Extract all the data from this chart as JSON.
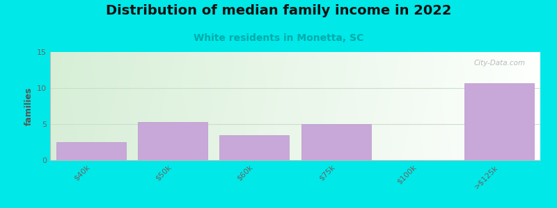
{
  "categories": [
    "$40k",
    "$50k",
    "$60k",
    "$75k",
    "$100k",
    ">$125k"
  ],
  "values": [
    2.5,
    5.3,
    3.5,
    5.0,
    0,
    10.7
  ],
  "bar_color": "#c8a8d8",
  "bar_edge_color": "#b898c8",
  "title": "Distribution of median family income in 2022",
  "subtitle": "White residents in Monetta, SC",
  "ylabel": "families",
  "ylim": [
    0,
    15
  ],
  "yticks": [
    0,
    5,
    10,
    15
  ],
  "background_color": "#00e8e8",
  "plot_bg_topleft": "#d8eed8",
  "plot_bg_topright": "#f0f0f0",
  "plot_bg_bottomleft": "#e8f5e0",
  "plot_bg_bottomright": "#ffffff",
  "title_fontsize": 14,
  "subtitle_fontsize": 10,
  "subtitle_color": "#00aaaa",
  "watermark": "City-Data.com",
  "grid_color": "#ccddcc",
  "bar_width": 0.85,
  "ylabel_fontsize": 9,
  "tick_fontsize": 8
}
